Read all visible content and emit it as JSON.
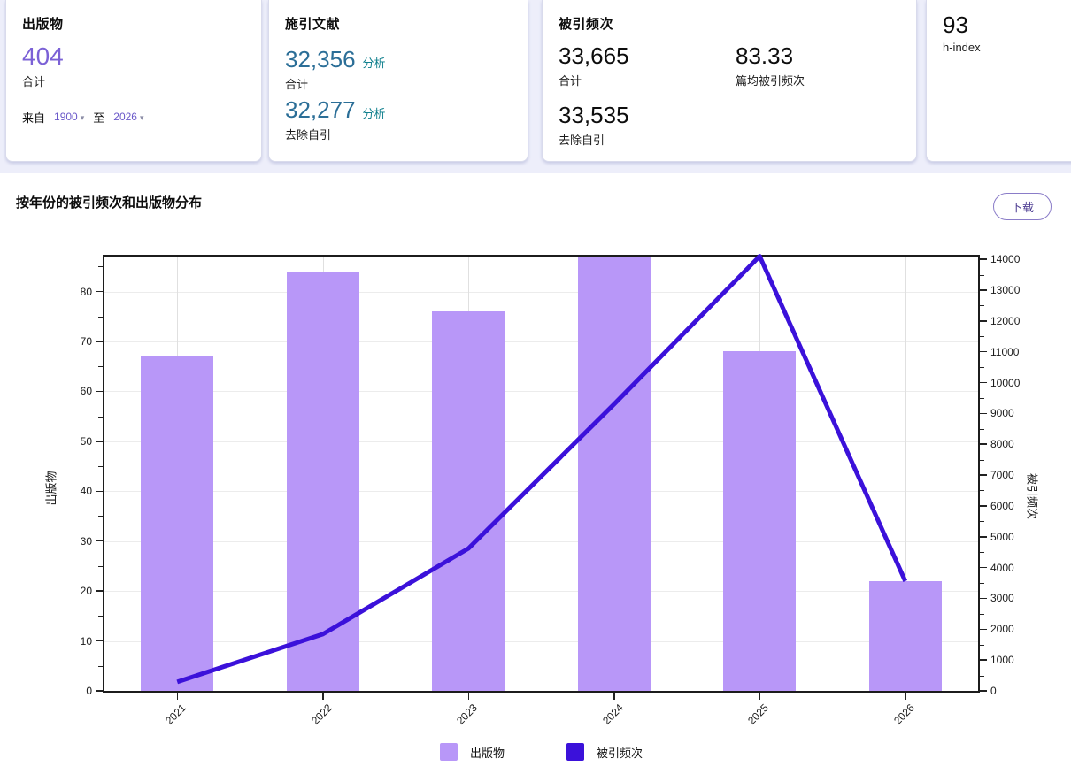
{
  "cards": {
    "publications": {
      "title": "出版物",
      "total": "404",
      "total_label": "合计",
      "from_label": "来自",
      "from_year": "1900",
      "to_label": "至",
      "to_year": "2026"
    },
    "citing": {
      "title": "施引文献",
      "total": "32,356",
      "total_analyze_label": "分析",
      "total_label": "合计",
      "excl_self": "32,277",
      "excl_self_analyze_label": "分析",
      "excl_self_label": "去除自引"
    },
    "cited": {
      "title": "被引频次",
      "total": "33,665",
      "total_label": "合计",
      "average": "83.33",
      "average_label": "篇均被引频次",
      "excl_self": "33,535",
      "excl_self_label": "去除自引"
    },
    "h_index": {
      "value": "93",
      "label": "h-index"
    }
  },
  "chart_section": {
    "title": "按年份的被引频次和出版物分布",
    "download_label": "下载"
  },
  "icons": {
    "chevron_down": "▾"
  },
  "colors": {
    "accent_purple": "#7b61d6",
    "number_blue": "#2b6e97",
    "analyze_teal": "#11808e",
    "bar_purple": "#b897f8",
    "line_violet": "#3b11da",
    "band": "#edeefa"
  },
  "chart_data": {
    "type": "bar+line combo",
    "categories": [
      "2021",
      "2022",
      "2023",
      "2024",
      "2025",
      "2026"
    ],
    "series": [
      {
        "name": "出版物",
        "type": "bar",
        "axis": "left",
        "color": "#b897f8",
        "values": [
          67,
          84,
          76,
          87,
          68,
          22
        ]
      },
      {
        "name": "被引频次",
        "type": "line",
        "axis": "right",
        "color": "#3b11da",
        "values": [
          290,
          1840,
          4620,
          9300,
          14100,
          3560
        ]
      }
    ],
    "left_axis": {
      "label": "出版物",
      "ticks": [
        0,
        10,
        20,
        30,
        40,
        50,
        60,
        70,
        80
      ],
      "range": [
        0,
        87
      ]
    },
    "right_axis": {
      "label": "被引频次",
      "ticks": [
        0,
        1000,
        2000,
        3000,
        4000,
        5000,
        6000,
        7000,
        8000,
        9000,
        10000,
        11000,
        12000,
        13000,
        14000
      ],
      "range": [
        0,
        14090
      ]
    },
    "legend_position": "bottom",
    "grid": true
  }
}
